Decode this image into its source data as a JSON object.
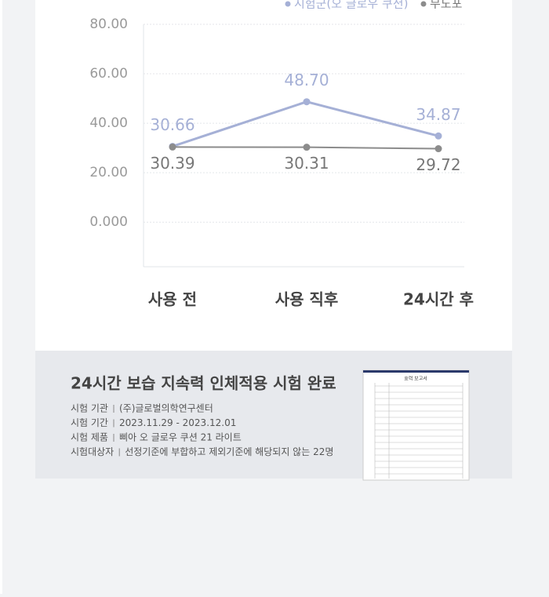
{
  "chart_data": {
    "type": "line",
    "categories": [
      "사용 전",
      "사용 직후",
      "24시간 후"
    ],
    "series": [
      {
        "name": "시험군(오 글로우 쿠션)",
        "color": "#a5b0d6",
        "values": [
          30.66,
          48.7,
          34.87
        ],
        "value_labels": [
          "30.66",
          "48.70",
          "34.87"
        ]
      },
      {
        "name": "무도포",
        "color": "#8c8c8c",
        "values": [
          30.39,
          30.31,
          29.72
        ]
      }
    ],
    "ylim": [
      -18,
      80
    ],
    "yticks": [
      {
        "value": 0,
        "label": "0.000"
      },
      {
        "value": 20,
        "label": "20.00"
      },
      {
        "value": 40,
        "label": "40.00"
      },
      {
        "value": 60,
        "label": "60.00"
      },
      {
        "value": 80,
        "label": "80.00"
      }
    ],
    "grid": true
  },
  "info": {
    "title": "24시간 보습 지속력 인체적용 시험 완료",
    "rows": [
      {
        "label": "시험 기관",
        "value": "(주)글로벌의학연구센터"
      },
      {
        "label": "시험 기간",
        "value": "2023.11.29 - 2023.12.01"
      },
      {
        "label": "시험 제품",
        "value": "삐아 오 글로우 쿠션 21 라이트"
      },
      {
        "label": "시험대상자",
        "value": "선정기준에 부합하고 제외기준에 해당되지 않는 22명"
      }
    ],
    "report_title": "효력 보고서"
  }
}
